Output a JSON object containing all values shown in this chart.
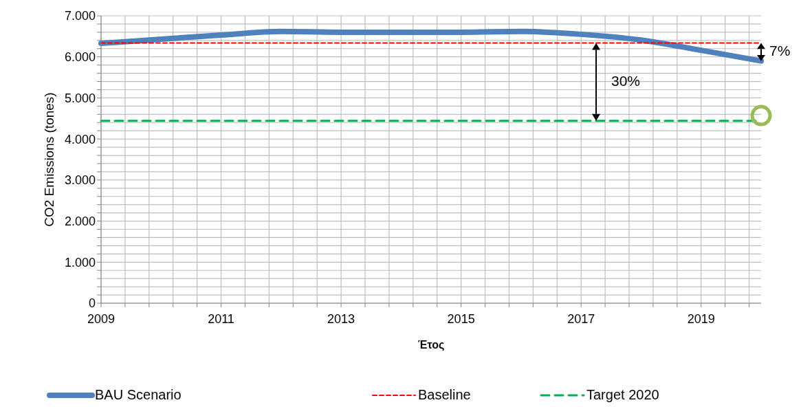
{
  "chart_data": {
    "type": "line",
    "xlabel": "Έτος",
    "ylabel": "CO2 Emissions (tones)",
    "x": [
      2009,
      2010,
      2011,
      2012,
      2013,
      2014,
      2015,
      2016,
      2017,
      2018,
      2019,
      2020
    ],
    "series": [
      {
        "name": "BAU Scenario",
        "color": "#4f81bd",
        "line_style": "solid",
        "values": [
          6330,
          6430,
          6530,
          6620,
          6600,
          6600,
          6600,
          6620,
          6550,
          6410,
          6160,
          5900
        ]
      },
      {
        "name": "Baseline",
        "color": "#ff0000",
        "line_style": "dotted",
        "values": [
          6340,
          6340,
          6340,
          6340,
          6340,
          6340,
          6340,
          6340,
          6340,
          6340,
          6340,
          6340
        ]
      },
      {
        "name": "Target 2020",
        "color": "#00b050",
        "line_style": "dashed",
        "values": [
          4440,
          4440,
          4440,
          4440,
          4440,
          4440,
          4440,
          4440,
          4440,
          4440,
          4440,
          4440
        ]
      },
      {
        "type": "scatter",
        "color": "#9bbb59",
        "marker": "circle",
        "x": [
          2020
        ],
        "values": [
          4570
        ]
      }
    ],
    "annotations": [
      "30%",
      "7%"
    ],
    "xlim": [
      2009,
      2020
    ],
    "xticks": [
      2009,
      {
        "value": 2009.4,
        "label": null
      },
      {
        "value": 2009.8,
        "label": null
      },
      {
        "value": 2010.2,
        "label": null
      },
      {
        "value": 2010.6,
        "label": null
      },
      2011,
      {
        "value": 2011.4,
        "label": null
      },
      {
        "value": 2011.8,
        "label": null
      },
      {
        "value": 2012.2,
        "label": null
      },
      {
        "value": 2012.6,
        "label": null
      },
      2013,
      {
        "value": 2013.4,
        "label": null
      },
      {
        "value": 2013.8,
        "label": null
      },
      {
        "value": 2014.2,
        "label": null
      },
      {
        "value": 2014.6,
        "label": null
      },
      2015,
      {
        "value": 2015.4,
        "label": null
      },
      {
        "value": 2015.8,
        "label": null
      },
      {
        "value": 2016.2,
        "label": null
      },
      {
        "value": 2016.6,
        "label": null
      },
      2017,
      {
        "value": 2017.4,
        "label": null
      },
      {
        "value": 2017.8,
        "label": null
      },
      {
        "value": 2018.2,
        "label": null
      },
      {
        "value": 2018.6,
        "label": null
      },
      2019,
      {
        "value": 2019.4,
        "label": null
      },
      {
        "value": 2019.8,
        "label": null
      }
    ],
    "ylim": [
      0,
      7000
    ],
    "yticks": [
      0,
      {
        "value": 200,
        "label": null
      },
      {
        "value": 400,
        "label": null
      },
      {
        "value": 600,
        "label": null
      },
      {
        "value": 800,
        "label": null
      },
      {
        "value": 1000,
        "label": "1.000"
      },
      {
        "value": 1200,
        "label": null
      },
      {
        "value": 1400,
        "label": null
      },
      {
        "value": 1600,
        "label": null
      },
      {
        "value": 1800,
        "label": null
      },
      {
        "value": 2000,
        "label": "2.000"
      },
      {
        "value": 2200,
        "label": null
      },
      {
        "value": 2400,
        "label": null
      },
      {
        "value": 2600,
        "label": null
      },
      {
        "value": 2800,
        "label": null
      },
      {
        "value": 3000,
        "label": "3.000"
      },
      {
        "value": 3200,
        "label": null
      },
      {
        "value": 3400,
        "label": null
      },
      {
        "value": 3600,
        "label": null
      },
      {
        "value": 3800,
        "label": null
      },
      {
        "value": 4000,
        "label": "4.000"
      },
      {
        "value": 4200,
        "label": null
      },
      {
        "value": 4400,
        "label": null
      },
      {
        "value": 4600,
        "label": null
      },
      {
        "value": 4800,
        "label": null
      },
      {
        "value": 5000,
        "label": "5.000"
      },
      {
        "value": 5200,
        "label": null
      },
      {
        "value": 5400,
        "label": null
      },
      {
        "value": 5600,
        "label": null
      },
      {
        "value": 5800,
        "label": null
      },
      {
        "value": 6000,
        "label": "6.000"
      },
      {
        "value": 6200,
        "label": null
      },
      {
        "value": 6400,
        "label": null
      },
      {
        "value": 6600,
        "label": null
      },
      {
        "value": 6800,
        "label": null
      },
      {
        "value": 7000,
        "label": "7.000"
      }
    ],
    "grid": true,
    "legend": "bottom"
  }
}
